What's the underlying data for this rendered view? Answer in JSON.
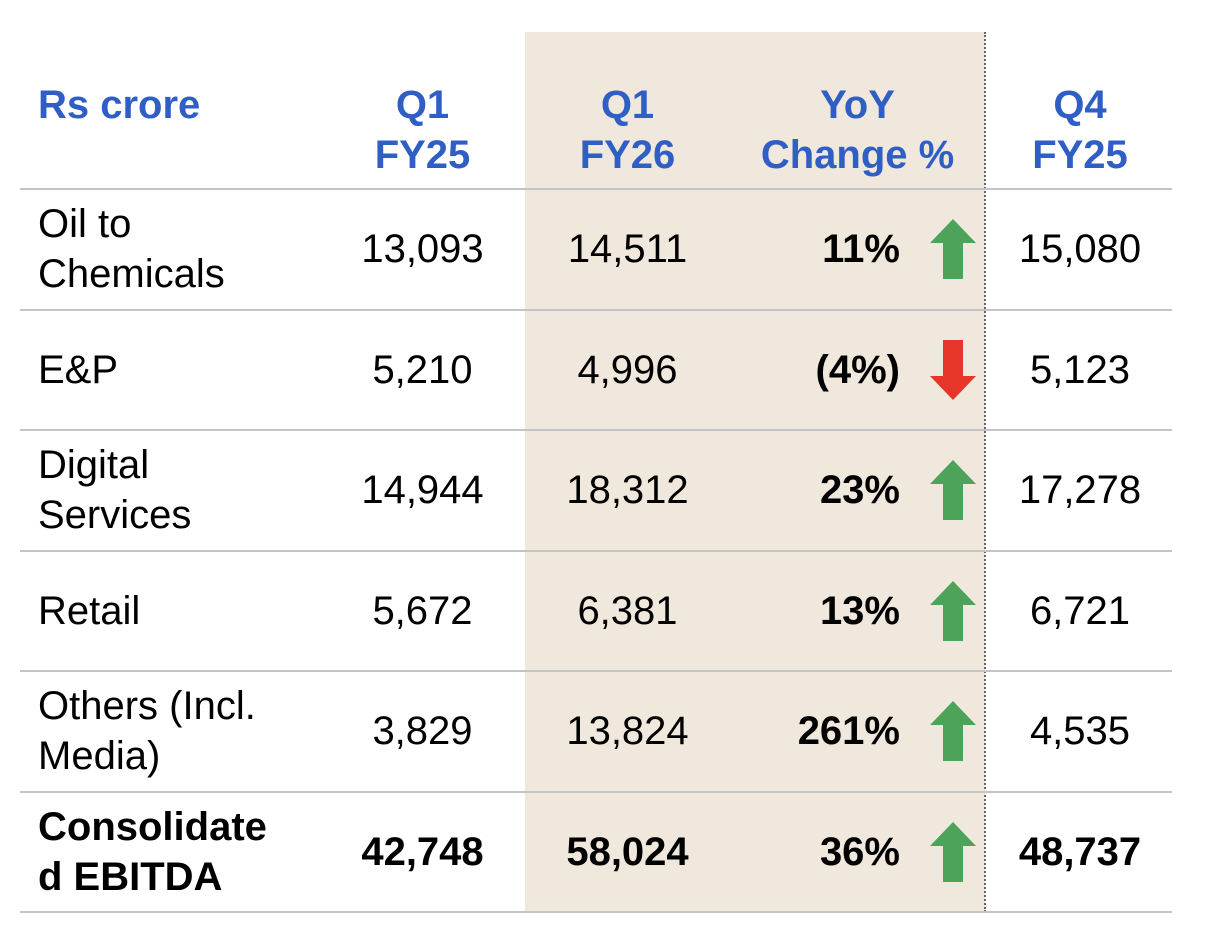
{
  "header": {
    "label": "Rs crore",
    "col1": [
      "Q1",
      "FY25"
    ],
    "col2": [
      "Q1",
      "FY26"
    ],
    "col3": [
      "YoY",
      "Change %"
    ],
    "col4": [
      "Q4",
      "FY25"
    ]
  },
  "rows": [
    {
      "label": [
        "Oil to",
        "Chemicals"
      ],
      "q1fy25": "13,093",
      "q1fy26": "14,511",
      "yoy": "11%",
      "direction": "up",
      "q4fy25": "15,080"
    },
    {
      "label": [
        "E&P"
      ],
      "q1fy25": "5,210",
      "q1fy26": "4,996",
      "yoy": "(4%)",
      "direction": "down",
      "q4fy25": "5,123"
    },
    {
      "label": [
        "Digital",
        "Services"
      ],
      "q1fy25": "14,944",
      "q1fy26": "18,312",
      "yoy": "23%",
      "direction": "up",
      "q4fy25": "17,278"
    },
    {
      "label": [
        "Retail"
      ],
      "q1fy25": "5,672",
      "q1fy26": "6,381",
      "yoy": "13%",
      "direction": "up",
      "q4fy25": "6,721"
    },
    {
      "label": [
        "Others (Incl.",
        "Media)"
      ],
      "q1fy25": "3,829",
      "q1fy26": "13,824",
      "yoy": "261%",
      "direction": "up",
      "q4fy25": "4,535"
    },
    {
      "label": [
        "Consolidate",
        "d EBITDA"
      ],
      "q1fy25": "42,748",
      "q1fy26": "58,024",
      "yoy": "36%",
      "direction": "up",
      "q4fy25": "48,737"
    }
  ],
  "colors": {
    "header_text": "#2f5ec4",
    "highlight_column": "#f0e8dc",
    "arrow_up": "#4ea35a",
    "arrow_down": "#e8352a"
  },
  "icons": {
    "up": "arrow-up-icon",
    "down": "arrow-down-icon"
  }
}
